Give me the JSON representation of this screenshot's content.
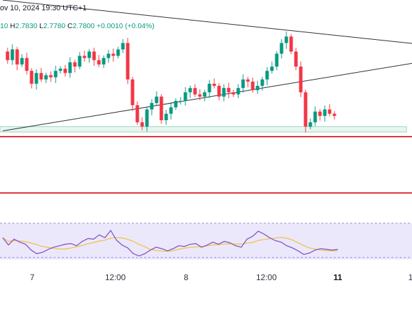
{
  "header": {
    "datetime": "ov 10, 2024 19:30 UTC+1"
  },
  "ohlc": {
    "open_fragment": "10",
    "high_label": "H",
    "high": "2.7830",
    "low_label": "L",
    "low": "2.7780",
    "close_label": "C",
    "close": "2.7800",
    "change": "+0.0010 (+0.04%)"
  },
  "colors": {
    "bull": "#089981",
    "bear": "#f23645",
    "trendline": "#2a2e39",
    "support_zone_fill": "#e8f5ef",
    "support_zone_border": "#9ed6bf",
    "horizontal_level": "#e0323c",
    "rsi_band": "#ece8fb",
    "rsi_line": "#7e57c2",
    "rsi_ma": "#f0c040"
  },
  "chart_data": {
    "type": "candlestick",
    "x_tick_labels": [
      "7",
      "12:00",
      "8",
      "12:00",
      "11",
      "1"
    ],
    "price_series": [
      2.95,
      2.91,
      2.96,
      2.89,
      2.92,
      2.86,
      2.8,
      2.85,
      2.82,
      2.84,
      2.83,
      2.86,
      2.87,
      2.85,
      2.9,
      2.88,
      2.93,
      2.92,
      2.95,
      2.91,
      2.89,
      2.92,
      2.94,
      2.93,
      2.96,
      2.99,
      2.82,
      2.7,
      2.62,
      2.6,
      2.68,
      2.71,
      2.74,
      2.63,
      2.66,
      2.69,
      2.72,
      2.72,
      2.76,
      2.78,
      2.75,
      2.74,
      2.76,
      2.8,
      2.79,
      2.74,
      2.78,
      2.76,
      2.75,
      2.78,
      2.82,
      2.81,
      2.77,
      2.79,
      2.82,
      2.86,
      2.88,
      2.94,
      2.99,
      3.02,
      2.95,
      2.88,
      2.76,
      2.6,
      2.62,
      2.67,
      2.65,
      2.68,
      2.66,
      2.65
    ],
    "rsi_series": [
      58,
      48,
      56,
      52,
      49,
      41,
      36,
      38,
      42,
      45,
      47,
      49,
      50,
      47,
      53,
      57,
      56,
      62,
      58,
      68,
      55,
      48,
      44,
      36,
      33,
      36,
      41,
      45,
      43,
      40,
      43,
      47,
      46,
      49,
      50,
      45,
      48,
      52,
      49,
      53,
      51,
      47,
      45,
      56,
      60,
      67,
      63,
      58,
      54,
      52,
      47,
      44,
      40,
      35,
      37,
      41,
      43,
      42,
      41,
      42
    ],
    "levels": {
      "support_zone": [
        2.575,
        2.6
      ],
      "horizontal_lines": [
        2.553,
        2.19
      ]
    },
    "trendlines": [
      {
        "from": [
          0,
          3.19
        ],
        "to": [
          69,
          2.96
        ]
      },
      {
        "from": [
          0,
          2.58
        ],
        "to": [
          69,
          2.87
        ]
      }
    ]
  }
}
